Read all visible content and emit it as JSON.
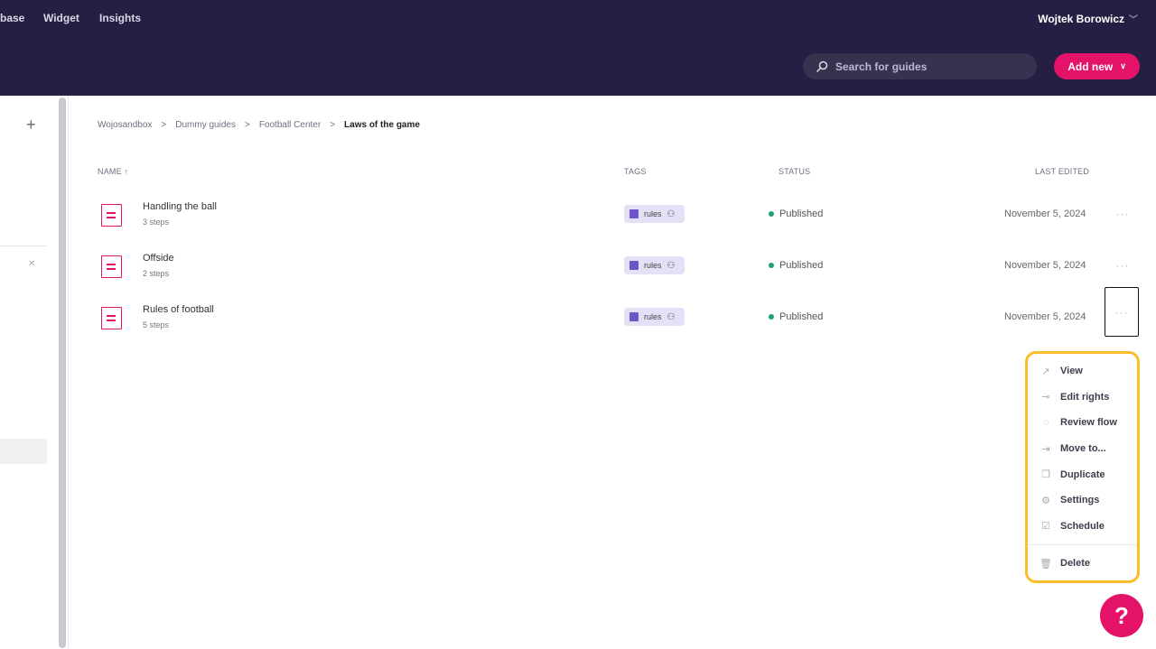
{
  "header": {
    "nav": [
      "base",
      "Widget",
      "Insights"
    ],
    "user": "Wojtek Borowicz",
    "search_placeholder": "Search for guides",
    "add_new": "Add new"
  },
  "breadcrumb": [
    "Wojosandbox",
    "Dummy guides",
    "Football Center",
    "Laws of the game"
  ],
  "columns": {
    "name": "NAME",
    "tags": "TAGS",
    "status": "STATUS",
    "last_edited": "LAST EDITED"
  },
  "rows": [
    {
      "name": "Handling the ball",
      "steps": "3 steps",
      "tag": "rules",
      "status": "Published",
      "date": "November 5, 2024"
    },
    {
      "name": "Offside",
      "steps": "2 steps",
      "tag": "rules",
      "status": "Published",
      "date": "November 5, 2024"
    },
    {
      "name": "Rules of football",
      "steps": "5 steps",
      "tag": "rules",
      "status": "Published",
      "date": "November 5, 2024"
    }
  ],
  "menu": [
    {
      "label": "View",
      "icon": "external-link-icon"
    },
    {
      "label": "Edit rights",
      "icon": "key-icon"
    },
    {
      "label": "Review flow",
      "icon": "review-icon"
    },
    {
      "label": "Move to...",
      "icon": "move-icon"
    },
    {
      "label": "Duplicate",
      "icon": "copy-icon"
    },
    {
      "label": "Settings",
      "icon": "gear-icon"
    },
    {
      "label": "Schedule",
      "icon": "calendar-check-icon"
    }
  ],
  "menu_delete": "Delete",
  "colors": {
    "header": "#252043",
    "accent": "#e5126a",
    "tag": "#6d55c9",
    "published": "#21a06b",
    "highlight": "#fbbd2a"
  }
}
